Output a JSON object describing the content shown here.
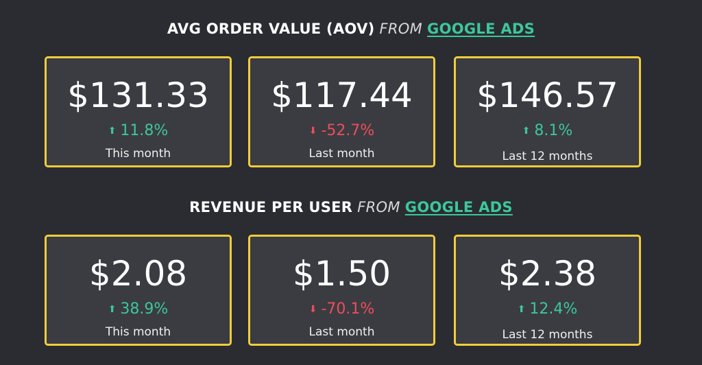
{
  "sections": [
    {
      "title_bold": "AVG ORDER VALUE (AOV)",
      "title_from": "FROM",
      "title_source": "GOOGLE ADS",
      "cards": [
        {
          "value": "$131.33",
          "change": "11.8%",
          "direction": "up",
          "period": "This month"
        },
        {
          "value": "$117.44",
          "change": "-52.7%",
          "direction": "down",
          "period": "Last month"
        },
        {
          "value": "$146.57",
          "change": "8.1%",
          "direction": "up",
          "period": "Last 12 months"
        }
      ]
    },
    {
      "title_bold": "REVENUE PER USER",
      "title_from": "FROM",
      "title_source": "GOOGLE ADS",
      "cards": [
        {
          "value": "$2.08",
          "change": "38.9%",
          "direction": "up",
          "period": "This month"
        },
        {
          "value": "$1.50",
          "change": "-70.1%",
          "direction": "down",
          "period": "Last month"
        },
        {
          "value": "$2.38",
          "change": "12.4%",
          "direction": "up",
          "period": "Last 12 months"
        }
      ]
    }
  ],
  "colors": {
    "background": "#2a2c32",
    "card_background": "#3a3c41",
    "card_border": "#f2cd3a",
    "positive": "#3dc79a",
    "negative": "#ee4d5c",
    "link": "#3dc79a"
  },
  "icons": {
    "up": "arrow-up-icon",
    "down": "arrow-down-icon"
  }
}
